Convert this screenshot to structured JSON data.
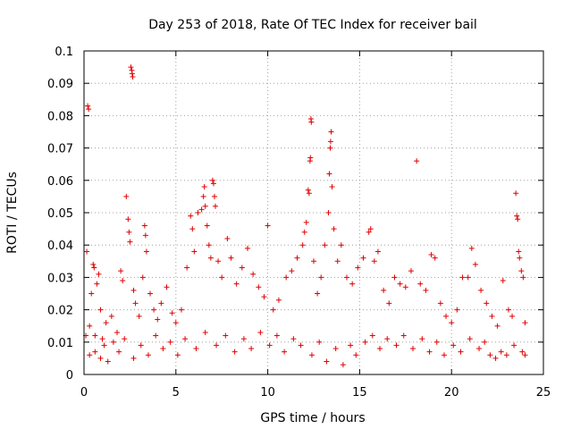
{
  "chart_data": {
    "type": "scatter",
    "title": "Day 253 of 2018, Rate Of TEC Index for receiver bail",
    "xlabel": "GPS time / hours",
    "ylabel": "ROTI / TECUs",
    "xlim": [
      0,
      25
    ],
    "ylim": [
      0,
      0.1
    ],
    "x_ticks": [
      0,
      5,
      10,
      15,
      20,
      25
    ],
    "y_ticks": [
      0,
      0.01,
      0.02,
      0.03,
      0.04,
      0.05,
      0.06,
      0.07,
      0.08,
      0.09,
      0.1
    ],
    "x_tick_labels": [
      "0",
      "5",
      "10",
      "15",
      "20",
      "25"
    ],
    "y_tick_labels": [
      "0",
      "0.01",
      "0.02",
      "0.03",
      "0.04",
      "0.05",
      "0.06",
      "0.07",
      "0.08",
      "0.09",
      "0.1"
    ],
    "grid": true,
    "marker": "plus",
    "color": "#e00000",
    "points": [
      [
        0.1,
        0.012
      ],
      [
        0.15,
        0.038
      ],
      [
        0.2,
        0.083
      ],
      [
        0.25,
        0.082
      ],
      [
        0.3,
        0.015
      ],
      [
        0.4,
        0.025
      ],
      [
        0.5,
        0.034
      ],
      [
        0.55,
        0.033
      ],
      [
        0.6,
        0.007
      ],
      [
        0.7,
        0.028
      ],
      [
        0.8,
        0.031
      ],
      [
        0.9,
        0.02
      ],
      [
        1.0,
        0.011
      ],
      [
        1.2,
        0.016
      ],
      [
        1.5,
        0.018
      ],
      [
        1.8,
        0.013
      ],
      [
        2.0,
        0.032
      ],
      [
        2.1,
        0.029
      ],
      [
        2.3,
        0.055
      ],
      [
        2.4,
        0.048
      ],
      [
        2.45,
        0.044
      ],
      [
        2.5,
        0.041
      ],
      [
        2.55,
        0.095
      ],
      [
        2.6,
        0.094
      ],
      [
        2.62,
        0.093
      ],
      [
        2.65,
        0.092
      ],
      [
        2.7,
        0.026
      ],
      [
        2.8,
        0.022
      ],
      [
        3.0,
        0.018
      ],
      [
        3.2,
        0.03
      ],
      [
        3.3,
        0.046
      ],
      [
        3.35,
        0.043
      ],
      [
        3.4,
        0.038
      ],
      [
        3.6,
        0.025
      ],
      [
        3.8,
        0.02
      ],
      [
        4.0,
        0.017
      ],
      [
        4.2,
        0.022
      ],
      [
        4.5,
        0.027
      ],
      [
        4.8,
        0.019
      ],
      [
        5.0,
        0.016
      ],
      [
        5.3,
        0.02
      ],
      [
        5.6,
        0.033
      ],
      [
        5.8,
        0.049
      ],
      [
        5.9,
        0.045
      ],
      [
        6.0,
        0.038
      ],
      [
        6.2,
        0.05
      ],
      [
        6.4,
        0.051
      ],
      [
        6.5,
        0.055
      ],
      [
        6.55,
        0.058
      ],
      [
        6.6,
        0.052
      ],
      [
        6.7,
        0.046
      ],
      [
        6.8,
        0.04
      ],
      [
        6.9,
        0.036
      ],
      [
        7.0,
        0.06
      ],
      [
        7.05,
        0.059
      ],
      [
        7.1,
        0.055
      ],
      [
        7.15,
        0.052
      ],
      [
        7.3,
        0.035
      ],
      [
        7.5,
        0.03
      ],
      [
        7.8,
        0.042
      ],
      [
        8.0,
        0.036
      ],
      [
        8.3,
        0.028
      ],
      [
        8.6,
        0.033
      ],
      [
        8.9,
        0.039
      ],
      [
        9.2,
        0.031
      ],
      [
        9.5,
        0.027
      ],
      [
        9.8,
        0.024
      ],
      [
        10.0,
        0.046
      ],
      [
        10.3,
        0.02
      ],
      [
        10.6,
        0.023
      ],
      [
        11.0,
        0.03
      ],
      [
        11.3,
        0.032
      ],
      [
        11.6,
        0.036
      ],
      [
        11.9,
        0.04
      ],
      [
        12.0,
        0.044
      ],
      [
        12.1,
        0.047
      ],
      [
        12.2,
        0.057
      ],
      [
        12.25,
        0.056
      ],
      [
        12.3,
        0.066
      ],
      [
        12.32,
        0.067
      ],
      [
        12.35,
        0.079
      ],
      [
        12.37,
        0.078
      ],
      [
        12.5,
        0.035
      ],
      [
        12.7,
        0.025
      ],
      [
        12.9,
        0.03
      ],
      [
        13.1,
        0.04
      ],
      [
        13.3,
        0.05
      ],
      [
        13.35,
        0.062
      ],
      [
        13.4,
        0.07
      ],
      [
        13.42,
        0.072
      ],
      [
        13.45,
        0.075
      ],
      [
        13.5,
        0.058
      ],
      [
        13.6,
        0.045
      ],
      [
        13.8,
        0.035
      ],
      [
        14.0,
        0.04
      ],
      [
        14.3,
        0.03
      ],
      [
        14.6,
        0.028
      ],
      [
        14.9,
        0.033
      ],
      [
        15.2,
        0.036
      ],
      [
        15.5,
        0.044
      ],
      [
        15.6,
        0.045
      ],
      [
        15.8,
        0.035
      ],
      [
        16.0,
        0.038
      ],
      [
        16.3,
        0.026
      ],
      [
        16.6,
        0.022
      ],
      [
        16.9,
        0.03
      ],
      [
        17.2,
        0.028
      ],
      [
        17.5,
        0.027
      ],
      [
        17.8,
        0.032
      ],
      [
        18.1,
        0.066
      ],
      [
        18.3,
        0.028
      ],
      [
        18.6,
        0.026
      ],
      [
        18.9,
        0.037
      ],
      [
        19.1,
        0.036
      ],
      [
        19.4,
        0.022
      ],
      [
        19.7,
        0.018
      ],
      [
        20.0,
        0.016
      ],
      [
        20.3,
        0.02
      ],
      [
        20.6,
        0.03
      ],
      [
        20.9,
        0.03
      ],
      [
        21.1,
        0.039
      ],
      [
        21.3,
        0.034
      ],
      [
        21.6,
        0.026
      ],
      [
        21.9,
        0.022
      ],
      [
        22.2,
        0.018
      ],
      [
        22.5,
        0.015
      ],
      [
        22.8,
        0.029
      ],
      [
        23.1,
        0.02
      ],
      [
        23.3,
        0.018
      ],
      [
        23.5,
        0.056
      ],
      [
        23.55,
        0.049
      ],
      [
        23.6,
        0.048
      ],
      [
        23.65,
        0.038
      ],
      [
        23.7,
        0.036
      ],
      [
        23.8,
        0.032
      ],
      [
        23.9,
        0.03
      ],
      [
        24.0,
        0.016
      ],
      [
        0.3,
        0.006
      ],
      [
        0.6,
        0.012
      ],
      [
        0.9,
        0.005
      ],
      [
        1.1,
        0.009
      ],
      [
        1.3,
        0.004
      ],
      [
        1.6,
        0.01
      ],
      [
        1.9,
        0.007
      ],
      [
        2.2,
        0.011
      ],
      [
        2.7,
        0.005
      ],
      [
        3.1,
        0.009
      ],
      [
        3.5,
        0.006
      ],
      [
        3.9,
        0.012
      ],
      [
        4.3,
        0.008
      ],
      [
        4.7,
        0.01
      ],
      [
        5.1,
        0.006
      ],
      [
        5.5,
        0.011
      ],
      [
        6.1,
        0.008
      ],
      [
        6.6,
        0.013
      ],
      [
        7.2,
        0.009
      ],
      [
        7.7,
        0.012
      ],
      [
        8.2,
        0.007
      ],
      [
        8.7,
        0.011
      ],
      [
        9.1,
        0.008
      ],
      [
        9.6,
        0.013
      ],
      [
        10.1,
        0.009
      ],
      [
        10.5,
        0.012
      ],
      [
        10.9,
        0.007
      ],
      [
        11.4,
        0.011
      ],
      [
        11.8,
        0.009
      ],
      [
        12.4,
        0.006
      ],
      [
        12.8,
        0.01
      ],
      [
        13.2,
        0.004
      ],
      [
        13.7,
        0.008
      ],
      [
        14.1,
        0.003
      ],
      [
        14.5,
        0.009
      ],
      [
        14.8,
        0.006
      ],
      [
        15.3,
        0.01
      ],
      [
        15.7,
        0.012
      ],
      [
        16.1,
        0.008
      ],
      [
        16.5,
        0.011
      ],
      [
        17.0,
        0.009
      ],
      [
        17.4,
        0.012
      ],
      [
        17.9,
        0.008
      ],
      [
        18.4,
        0.011
      ],
      [
        18.8,
        0.007
      ],
      [
        19.2,
        0.01
      ],
      [
        19.6,
        0.006
      ],
      [
        20.1,
        0.009
      ],
      [
        20.5,
        0.007
      ],
      [
        21.0,
        0.011
      ],
      [
        21.5,
        0.008
      ],
      [
        21.8,
        0.01
      ],
      [
        22.1,
        0.006
      ],
      [
        22.4,
        0.005
      ],
      [
        22.7,
        0.007
      ],
      [
        23.0,
        0.006
      ],
      [
        23.4,
        0.009
      ],
      [
        23.85,
        0.007
      ],
      [
        24.0,
        0.006
      ]
    ]
  }
}
